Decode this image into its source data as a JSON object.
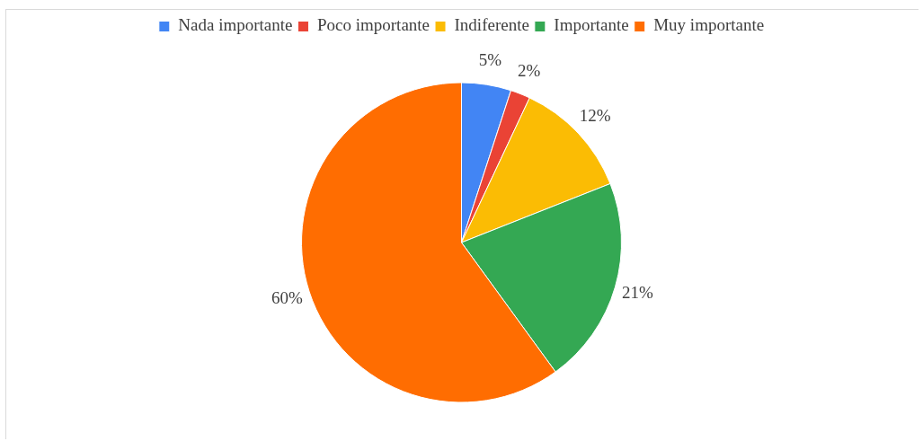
{
  "chart_data": {
    "type": "pie",
    "categories": [
      "Nada importante",
      "Poco importante",
      "Indiferente",
      "Importante",
      "Muy importante"
    ],
    "values": [
      5,
      2,
      12,
      21,
      60
    ],
    "value_labels": [
      "5%",
      "2%",
      "12%",
      "21%",
      "60%"
    ],
    "colors": [
      "#4285f4",
      "#ea4335",
      "#fbbc04",
      "#34a853",
      "#ff6d01"
    ],
    "legend": "top"
  }
}
